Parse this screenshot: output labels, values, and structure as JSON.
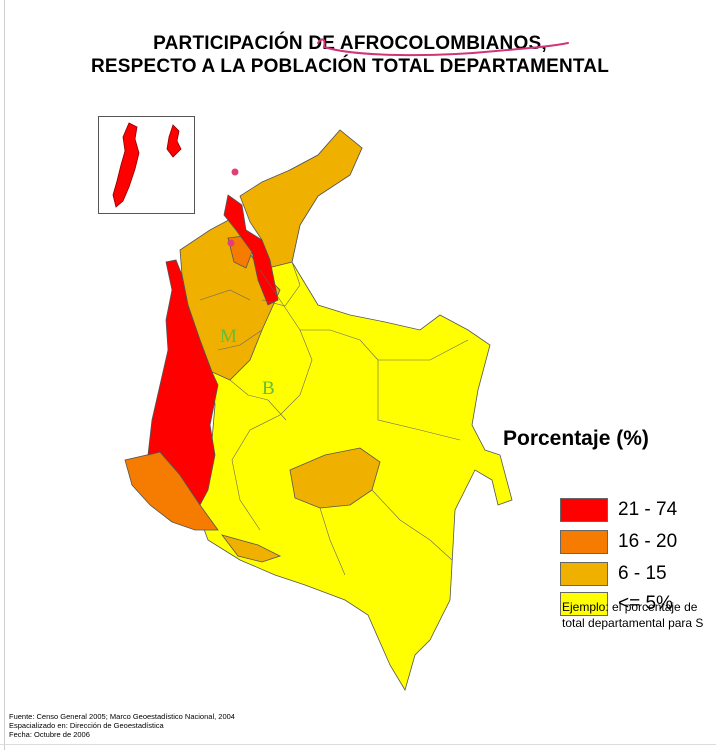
{
  "title": {
    "line1": "PARTICIPACIÓN DE  AFROCOLOMBIANOS,",
    "line2": "RESPECTO A LA POBLACIÓN TOTAL DEPARTAMENTAL"
  },
  "map": {
    "city_labels": {
      "medellin": "M",
      "bogota": "B"
    },
    "colors": {
      "range_21_74": "#ff0000",
      "range_16_20": "#f57c00",
      "range_6_15": "#f0b000",
      "range_le_5": "#ffff00",
      "annotation_pink": "#e0407a",
      "city_label_green": "#5fbf3a"
    }
  },
  "legend": {
    "title": "Porcentaje (%)",
    "items": [
      {
        "label": "21 - 74",
        "color": "#ff0000"
      },
      {
        "label": "16 - 20",
        "color": "#f57c00"
      },
      {
        "label": "6 - 15",
        "color": "#f0b000"
      },
      {
        "label": "<= 5%",
        "color": "#ffff00"
      }
    ]
  },
  "example": {
    "line1": "Ejemplo: el porcentaje de",
    "line2": "total departamental para S"
  },
  "source": {
    "line1": "Fuente: Censo General 2005; Marco Geoestadístico Nacional, 2004",
    "line2": "Espacializado en:  Dirección de Geoestadística",
    "line3": "Fecha:  Octubre de 2006"
  }
}
